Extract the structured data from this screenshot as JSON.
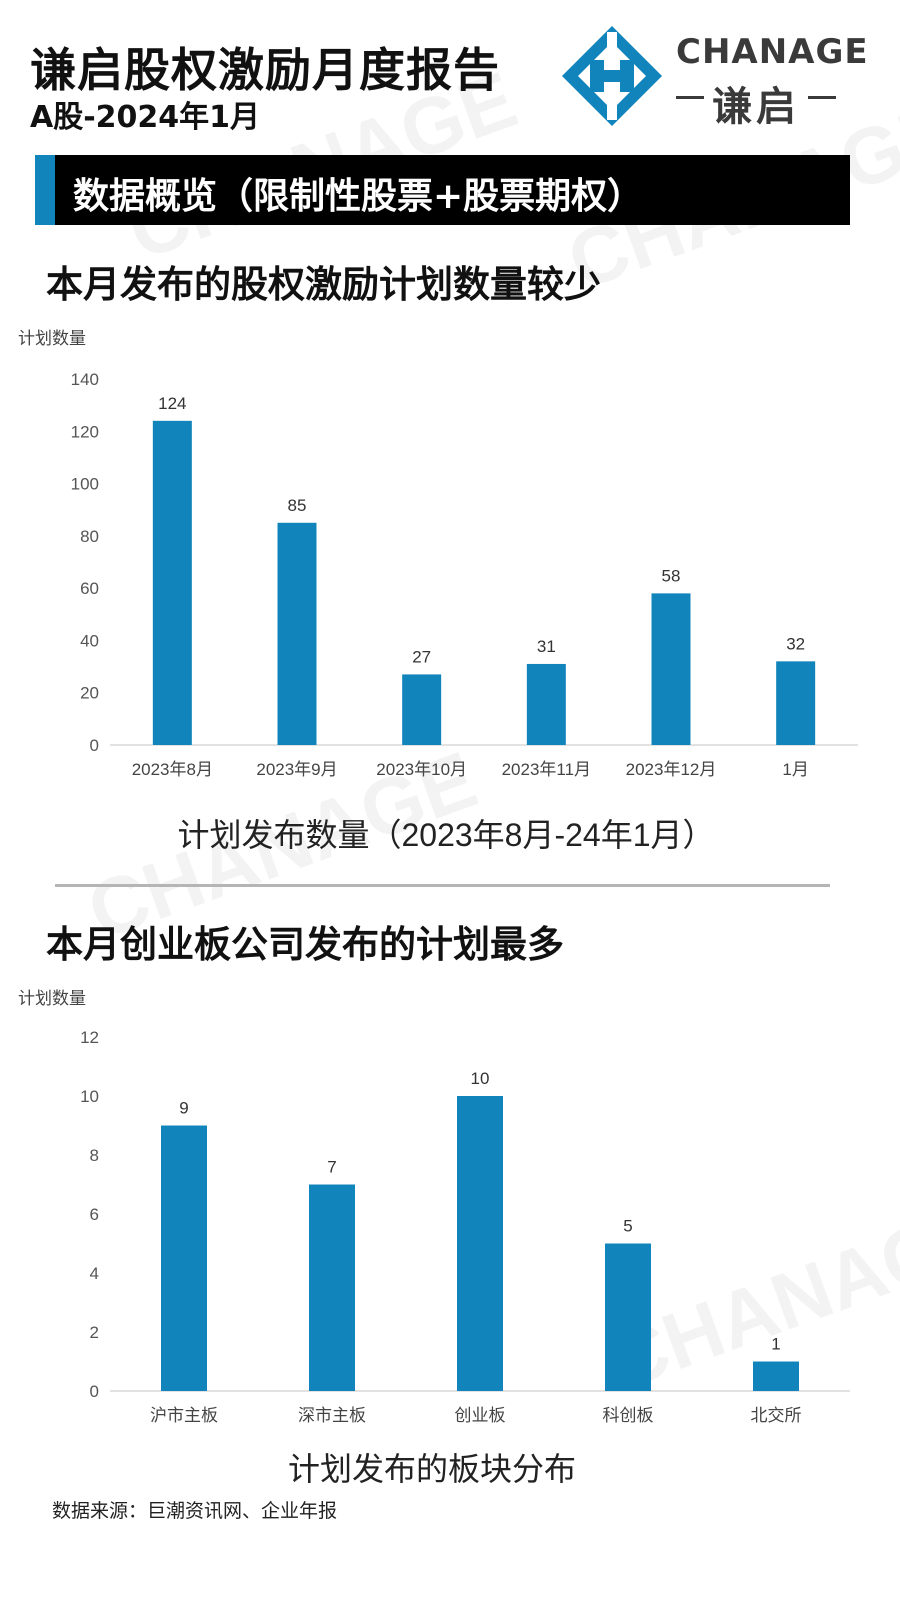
{
  "header": {
    "title": "谦启股权激励月度报告",
    "subtitle": "A股-2024年1月"
  },
  "logo": {
    "brand_en": "CHANAGE",
    "brand_cn": "谦启"
  },
  "section": {
    "title": "数据概览（限制性股票+股票期权）"
  },
  "colors": {
    "accent": "#1185bb",
    "bar": "#1185bb",
    "banner_bg": "#000000"
  },
  "chart_data": [
    {
      "type": "bar",
      "heading": "本月发布的股权激励计划数量较少",
      "ylabel": "计划数量",
      "categories": [
        "2023年8月",
        "2023年9月",
        "2023年10月",
        "2023年11月",
        "2023年12月",
        "1月"
      ],
      "values": [
        124,
        85,
        27,
        31,
        58,
        32
      ],
      "ylim": [
        0,
        140
      ],
      "yticks": [
        0,
        20,
        40,
        60,
        80,
        100,
        120,
        140
      ],
      "caption": "计划发布数量（2023年8月-24年1月）",
      "grid": false
    },
    {
      "type": "bar",
      "heading": "本月创业板公司发布的计划最多",
      "ylabel": "计划数量",
      "categories": [
        "沪市主板",
        "深市主板",
        "创业板",
        "科创板",
        "北交所"
      ],
      "values": [
        9,
        7,
        10,
        5,
        1
      ],
      "ylim": [
        0,
        12
      ],
      "yticks": [
        0,
        2,
        4,
        6,
        8,
        10,
        12
      ],
      "caption": "计划发布的板块分布",
      "grid": false
    }
  ],
  "footer": {
    "source": "数据来源：巨潮资讯网、企业年报"
  }
}
